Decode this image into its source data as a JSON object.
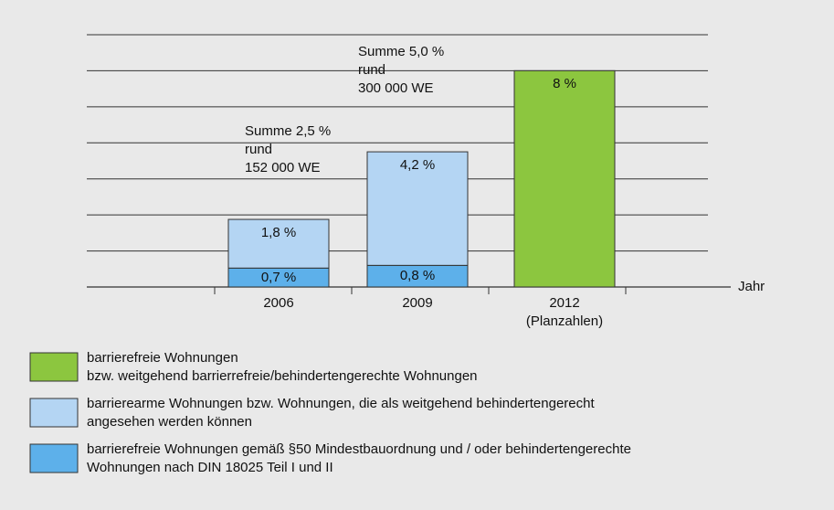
{
  "chart_data": {
    "type": "stacked_bar",
    "categories": [
      "2006",
      "2009",
      "2012\n(Planzahlen)"
    ],
    "x_label": "Jahr",
    "ylim": [
      0,
      9.33
    ],
    "grid": true,
    "series": [
      {
        "name": "barrierefreie Wohnungen gemäß §50 Mindestbauordnung und / oder behindertengerechte\nWohnungen nach DIN 18025 Teil I und II",
        "color": "#5db0ea",
        "values": [
          0.7,
          0.8,
          null
        ],
        "value_labels": [
          "0,7 %",
          "0,8 %",
          null
        ]
      },
      {
        "name": "barrierearme Wohnungen bzw. Wohnungen, die als weitgehend behindertengerecht\nangesehen werden können",
        "color": "#b4d5f3",
        "values": [
          1.8,
          4.2,
          null
        ],
        "value_labels": [
          "1,8 %",
          "4,2 %",
          null
        ]
      },
      {
        "name": "barrierefreie Wohnungen\nbzw. weitgehend barrierrefreie/behindertengerechte Wohnungen",
        "color": "#8cc63f",
        "values": [
          null,
          null,
          8
        ],
        "value_labels": [
          null,
          null,
          "8 %"
        ]
      }
    ],
    "annotations": [
      {
        "text": "Summe 2,5 %\nrund\n152 000 WE"
      },
      {
        "text": "Summe 5,0 %\nrund\n300 000 WE"
      }
    ]
  }
}
